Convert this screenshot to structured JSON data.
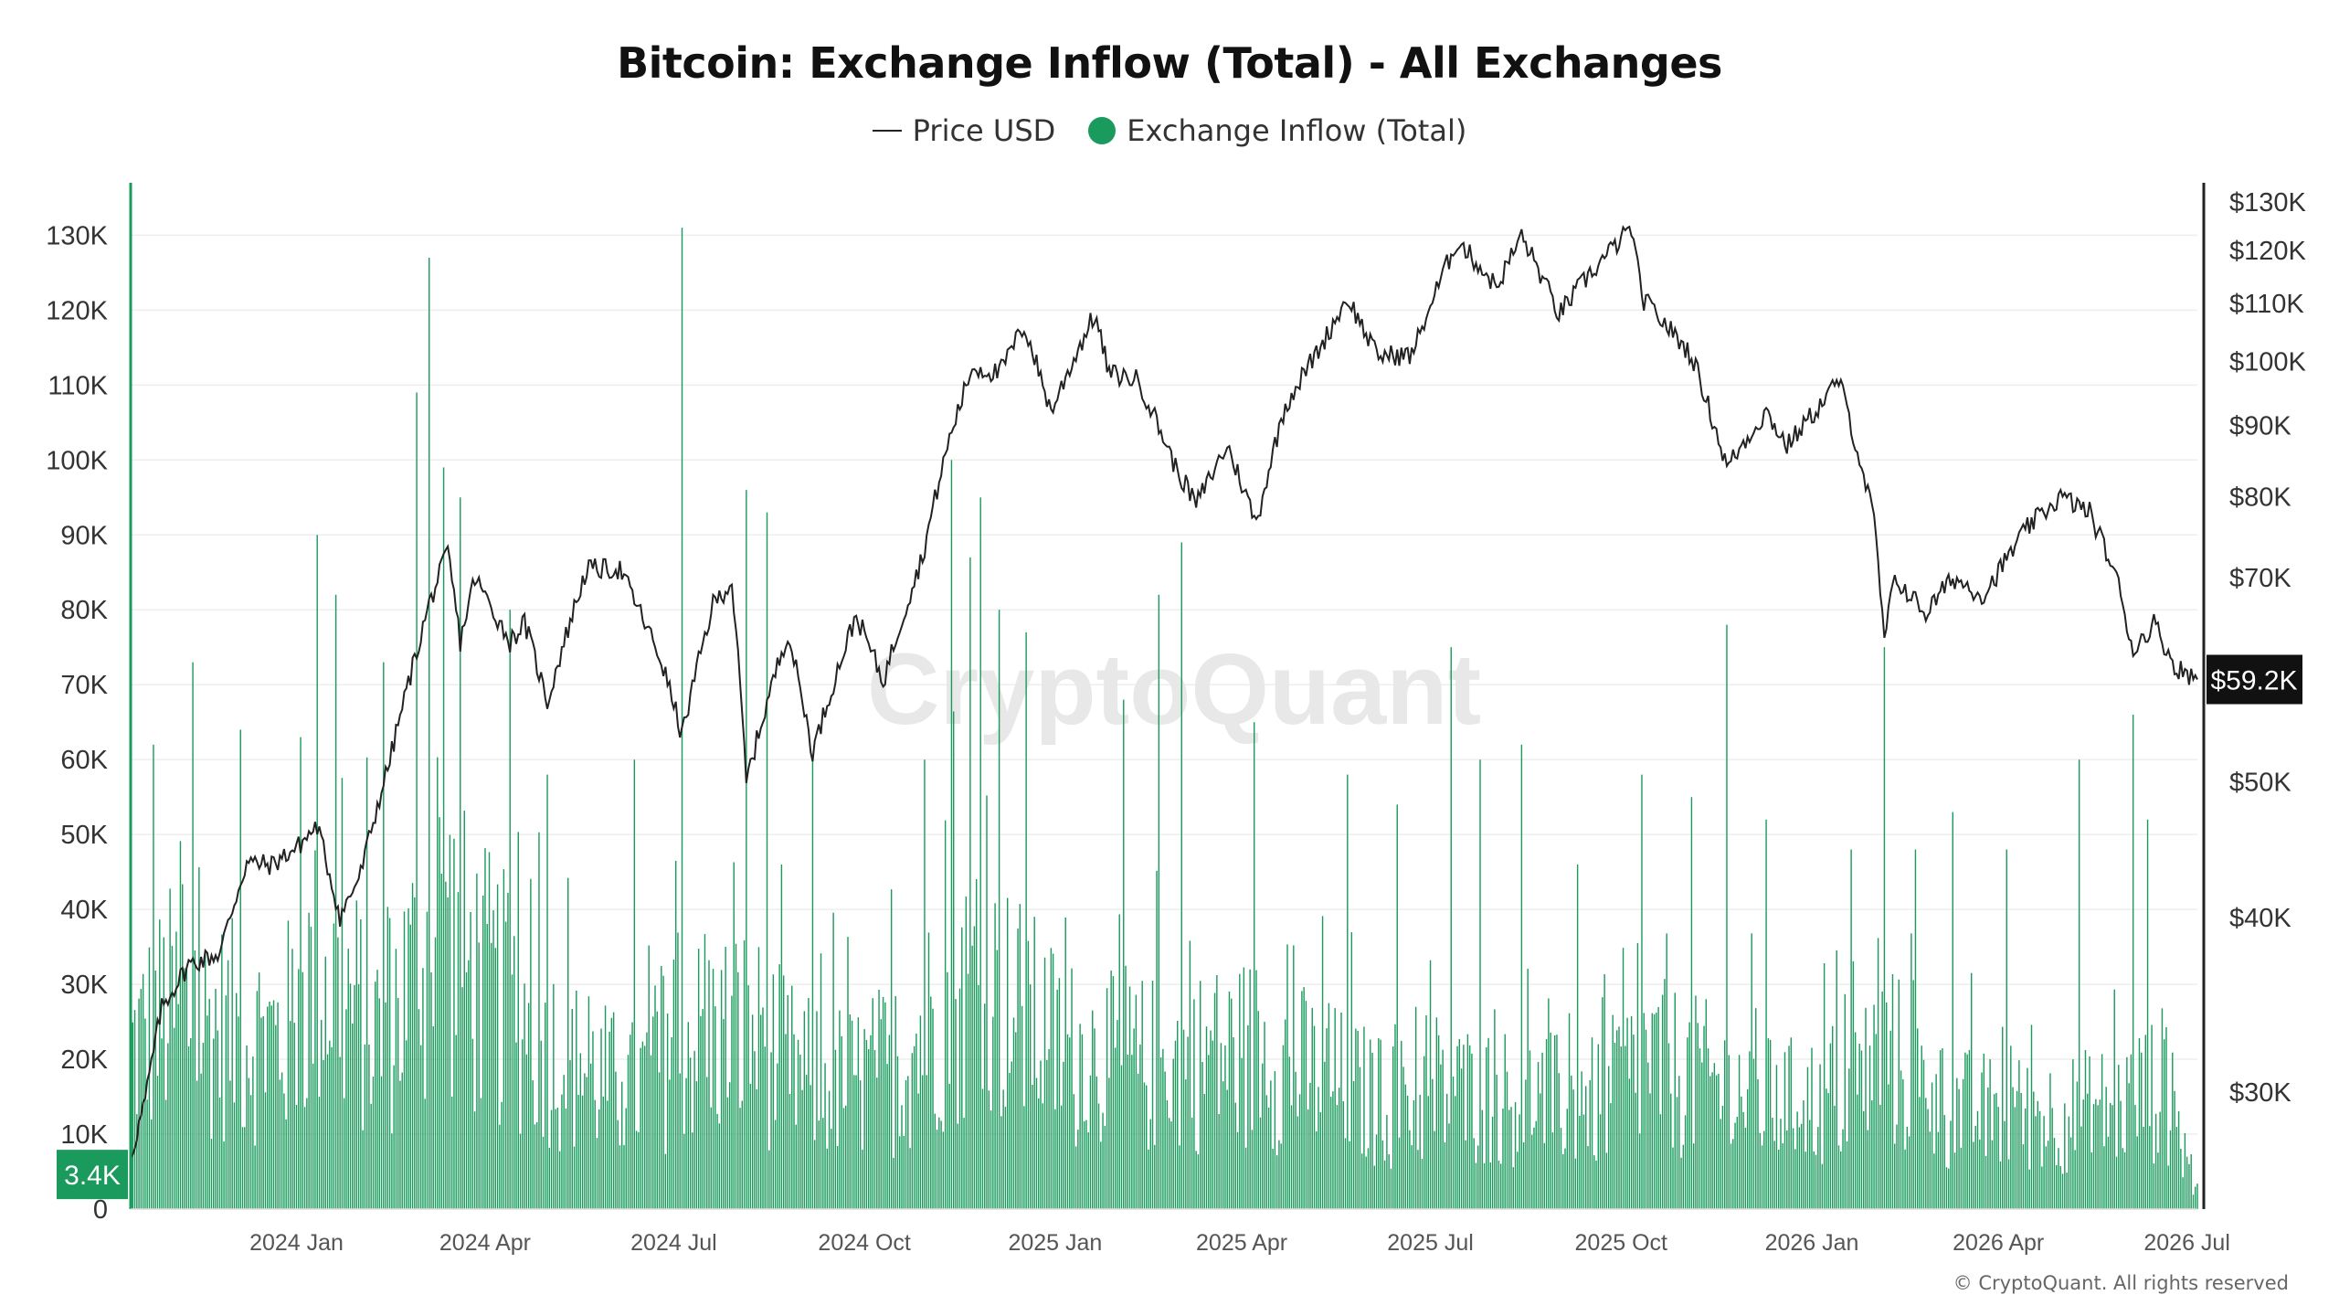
{
  "chart_data": {
    "type": "bar+line",
    "title": "Bitcoin: Exchange Inflow (Total) - All Exchanges",
    "legend": [
      {
        "name": "Price USD",
        "marker": "line",
        "color": "#222222"
      },
      {
        "name": "Exchange Inflow (Total)",
        "marker": "dot",
        "color": "#1a9a5c"
      }
    ],
    "x_axis": {
      "type": "date",
      "ticks": [
        "2024 Jan",
        "2024 Apr",
        "2024 Jul",
        "2024 Oct",
        "2025 Jan",
        "2025 Apr",
        "2025 Jul",
        "2025 Oct",
        "2026 Jan",
        "2026 Apr",
        "2026 Jul"
      ],
      "range": [
        "2023-10-13",
        "2026-07-06"
      ]
    },
    "y_left": {
      "series": "Exchange Inflow (Total)",
      "ticks": [
        "0",
        "10K",
        "20K",
        "30K",
        "40K",
        "50K",
        "60K",
        "70K",
        "80K",
        "90K",
        "100K",
        "110K",
        "120K",
        "130K"
      ],
      "range": [
        0,
        137000
      ],
      "grid": true
    },
    "y_right": {
      "series": "Price USD",
      "scale": "log",
      "ticks": [
        {
          "label": "$30K",
          "value": 30000
        },
        {
          "label": "$40K",
          "value": 40000
        },
        {
          "label": "$50K",
          "value": 50000
        },
        {
          "label": "$70K",
          "value": 70000
        },
        {
          "label": "$80K",
          "value": 80000
        },
        {
          "label": "$90K",
          "value": 90000
        },
        {
          "label": "$100K",
          "value": 100000
        },
        {
          "label": "$110K",
          "value": 110000
        },
        {
          "label": "$120K",
          "value": 120000
        },
        {
          "label": "$130K",
          "value": 130000
        }
      ]
    },
    "last_price_label": "$59.2K",
    "last_price_value": 59200,
    "last_inflow_label": "3.4K",
    "last_inflow_value": 3400,
    "inflow_series": {
      "name": "Exchange Inflow (Total)",
      "color": "#1a9a5c",
      "points": [
        [
          "2023-10-13",
          30000
        ],
        [
          "2023-11-01",
          38000
        ],
        [
          "2023-11-20",
          35000
        ],
        [
          "2023-12-10",
          33000
        ],
        [
          "2023-12-25",
          32000
        ],
        [
          "2024-01-11",
          45000
        ],
        [
          "2024-01-25",
          40000
        ],
        [
          "2024-02-10",
          33000
        ],
        [
          "2024-02-28",
          45000
        ],
        [
          "2024-03-12",
          55000
        ],
        [
          "2024-03-25",
          45000
        ],
        [
          "2024-04-15",
          38000
        ],
        [
          "2024-05-10",
          28000
        ],
        [
          "2024-06-10",
          22000
        ],
        [
          "2024-07-05",
          32000
        ],
        [
          "2024-08-05",
          34000
        ],
        [
          "2024-09-01",
          25000
        ],
        [
          "2024-09-25",
          24000
        ],
        [
          "2024-10-20",
          28000
        ],
        [
          "2024-11-12",
          42000
        ],
        [
          "2024-12-05",
          40000
        ],
        [
          "2025-01-05",
          30000
        ],
        [
          "2025-02-05",
          27000
        ],
        [
          "2025-03-05",
          28000
        ],
        [
          "2025-04-08",
          30000
        ],
        [
          "2025-05-10",
          25000
        ],
        [
          "2025-06-10",
          20000
        ],
        [
          "2025-07-15",
          22000
        ],
        [
          "2025-08-20",
          21000
        ],
        [
          "2025-09-20",
          20000
        ],
        [
          "2025-10-12",
          28000
        ],
        [
          "2025-11-15",
          24000
        ],
        [
          "2025-12-15",
          20000
        ],
        [
          "2026-01-15",
          21000
        ],
        [
          "2026-02-06",
          30000
        ],
        [
          "2026-03-01",
          20000
        ],
        [
          "2026-04-01",
          18000
        ],
        [
          "2026-05-01",
          18000
        ],
        [
          "2026-06-01",
          20000
        ],
        [
          "2026-06-20",
          24000
        ],
        [
          "2026-07-06",
          3400
        ]
      ],
      "peaks": [
        [
          "2023-10-24",
          62000
        ],
        [
          "2023-11-12",
          73000
        ],
        [
          "2023-12-05",
          64000
        ],
        [
          "2024-01-03",
          63000
        ],
        [
          "2024-01-11",
          90000
        ],
        [
          "2024-01-20",
          82000
        ],
        [
          "2024-02-12",
          73000
        ],
        [
          "2024-02-28",
          109000
        ],
        [
          "2024-03-05",
          127000
        ],
        [
          "2024-03-12",
          99000
        ],
        [
          "2024-03-20",
          95000
        ],
        [
          "2024-04-13",
          80000
        ],
        [
          "2024-05-01",
          58000
        ],
        [
          "2024-06-12",
          60000
        ],
        [
          "2024-07-05",
          131000
        ],
        [
          "2024-08-05",
          96000
        ],
        [
          "2024-08-15",
          93000
        ],
        [
          "2024-09-06",
          60000
        ],
        [
          "2024-10-30",
          60000
        ],
        [
          "2024-11-12",
          100000
        ],
        [
          "2024-11-21",
          87000
        ],
        [
          "2024-11-26",
          95000
        ],
        [
          "2024-12-05",
          80000
        ],
        [
          "2024-12-18",
          77000
        ],
        [
          "2025-02-03",
          68000
        ],
        [
          "2025-02-20",
          82000
        ],
        [
          "2025-03-03",
          89000
        ],
        [
          "2025-04-07",
          65000
        ],
        [
          "2025-05-22",
          58000
        ],
        [
          "2025-06-15",
          54000
        ],
        [
          "2025-07-11",
          75000
        ],
        [
          "2025-07-25",
          60000
        ],
        [
          "2025-08-14",
          62000
        ],
        [
          "2025-09-10",
          46000
        ],
        [
          "2025-10-11",
          58000
        ],
        [
          "2025-11-04",
          55000
        ],
        [
          "2025-11-21",
          78000
        ],
        [
          "2025-12-10",
          52000
        ],
        [
          "2026-01-20",
          48000
        ],
        [
          "2026-02-05",
          75000
        ],
        [
          "2026-02-20",
          48000
        ],
        [
          "2026-03-10",
          53000
        ],
        [
          "2026-04-05",
          48000
        ],
        [
          "2026-05-10",
          60000
        ],
        [
          "2026-06-05",
          66000
        ],
        [
          "2026-06-12",
          52000
        ]
      ]
    },
    "price_series": {
      "name": "Price USD",
      "color": "#222222",
      "points": [
        [
          "2023-10-13",
          26900
        ],
        [
          "2023-10-20",
          29600
        ],
        [
          "2023-10-28",
          34500
        ],
        [
          "2023-11-10",
          37000
        ],
        [
          "2023-11-25",
          37700
        ],
        [
          "2023-12-08",
          43800
        ],
        [
          "2023-12-20",
          43600
        ],
        [
          "2024-01-02",
          45000
        ],
        [
          "2024-01-11",
          46500
        ],
        [
          "2024-01-22",
          40000
        ],
        [
          "2024-02-01",
          43000
        ],
        [
          "2024-02-15",
          51800
        ],
        [
          "2024-02-28",
          62000
        ],
        [
          "2024-03-05",
          67000
        ],
        [
          "2024-03-14",
          73000
        ],
        [
          "2024-03-20",
          63000
        ],
        [
          "2024-03-27",
          70000
        ],
        [
          "2024-04-13",
          63000
        ],
        [
          "2024-04-20",
          65000
        ],
        [
          "2024-05-01",
          57000
        ],
        [
          "2024-05-20",
          71000
        ],
        [
          "2024-06-05",
          71000
        ],
        [
          "2024-06-25",
          61000
        ],
        [
          "2024-07-05",
          54000
        ],
        [
          "2024-07-20",
          67000
        ],
        [
          "2024-07-29",
          69500
        ],
        [
          "2024-08-05",
          50000
        ],
        [
          "2024-08-25",
          64000
        ],
        [
          "2024-09-06",
          52500
        ],
        [
          "2024-09-27",
          65800
        ],
        [
          "2024-10-10",
          59000
        ],
        [
          "2024-10-29",
          72500
        ],
        [
          "2024-11-11",
          88000
        ],
        [
          "2024-11-22",
          99000
        ],
        [
          "2024-12-05",
          98000
        ],
        [
          "2024-12-17",
          106000
        ],
        [
          "2024-12-30",
          92000
        ],
        [
          "2025-01-20",
          108000
        ],
        [
          "2025-01-27",
          98000
        ],
        [
          "2025-02-10",
          97000
        ],
        [
          "2025-02-28",
          84000
        ],
        [
          "2025-03-10",
          79000
        ],
        [
          "2025-03-25",
          87000
        ],
        [
          "2025-04-08",
          76500
        ],
        [
          "2025-04-22",
          93000
        ],
        [
          "2025-05-10",
          103000
        ],
        [
          "2025-05-22",
          111000
        ],
        [
          "2025-06-05",
          101000
        ],
        [
          "2025-06-22",
          101000
        ],
        [
          "2025-07-14",
          122000
        ],
        [
          "2025-08-02",
          113000
        ],
        [
          "2025-08-14",
          123000
        ],
        [
          "2025-09-01",
          108000
        ],
        [
          "2025-09-15",
          115000
        ],
        [
          "2025-10-06",
          124500
        ],
        [
          "2025-10-11",
          111000
        ],
        [
          "2025-11-04",
          101000
        ],
        [
          "2025-11-21",
          84000
        ],
        [
          "2025-12-10",
          92000
        ],
        [
          "2025-12-20",
          87000
        ],
        [
          "2026-01-05",
          93000
        ],
        [
          "2026-01-14",
          97000
        ],
        [
          "2026-01-31",
          77000
        ],
        [
          "2026-02-05",
          63000
        ],
        [
          "2026-02-10",
          70000
        ],
        [
          "2026-02-25",
          66000
        ],
        [
          "2026-03-10",
          70000
        ],
        [
          "2026-03-25",
          68000
        ],
        [
          "2026-04-15",
          76000
        ],
        [
          "2026-05-01",
          80000
        ],
        [
          "2026-05-15",
          78000
        ],
        [
          "2026-05-28",
          70000
        ],
        [
          "2026-06-05",
          62000
        ],
        [
          "2026-06-15",
          65000
        ],
        [
          "2026-06-25",
          60500
        ],
        [
          "2026-07-06",
          59200
        ]
      ]
    },
    "watermark": "CryptoQuant"
  },
  "footer": {
    "copyright": "© CryptoQuant. All rights reserved"
  }
}
